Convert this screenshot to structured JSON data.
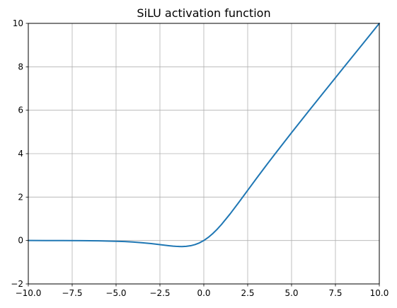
{
  "chart_data": {
    "type": "line",
    "title": "SiLU activation function",
    "xlabel": "",
    "ylabel": "",
    "xlim": [
      -10,
      10
    ],
    "ylim": [
      -2,
      10
    ],
    "x_ticks": [
      -10,
      -7.5,
      -5,
      -2.5,
      0,
      2.5,
      5,
      7.5,
      10
    ],
    "x_tick_labels": [
      "−10.0",
      "−7.5",
      "−5.0",
      "−2.5",
      "0.0",
      "2.5",
      "5.0",
      "7.5",
      "10.0"
    ],
    "y_ticks": [
      -2,
      0,
      2,
      4,
      6,
      8,
      10
    ],
    "y_tick_labels": [
      "−2",
      "0",
      "2",
      "4",
      "6",
      "8",
      "10"
    ],
    "grid": true,
    "legend": "none",
    "series": [
      {
        "color": "#1f77b4",
        "x": [
          -10,
          -9,
          -8,
          -7,
          -6,
          -5,
          -4.5,
          -4,
          -3.5,
          -3,
          -2.5,
          -2,
          -1.75,
          -1.5,
          -1.25,
          -1,
          -0.75,
          -0.5,
          -0.25,
          0,
          0.25,
          0.5,
          0.75,
          1,
          1.5,
          2,
          2.5,
          3,
          3.5,
          4,
          5,
          6,
          7,
          8,
          9,
          10
        ],
        "y": [
          -0.00045,
          -0.00111,
          -0.00268,
          -0.00638,
          -0.01483,
          -0.03346,
          -0.04944,
          -0.07194,
          -0.10277,
          -0.14228,
          -0.18964,
          -0.23841,
          -0.25864,
          -0.27363,
          -0.28084,
          -0.26894,
          -0.24076,
          -0.18877,
          -0.10969,
          0,
          0.14031,
          0.31123,
          0.50924,
          0.73106,
          1.22636,
          1.76159,
          2.31036,
          2.85772,
          3.39723,
          3.92806,
          4.96654,
          5.98517,
          6.99362,
          7.99732,
          8.99889,
          9.99955
        ]
      }
    ]
  }
}
